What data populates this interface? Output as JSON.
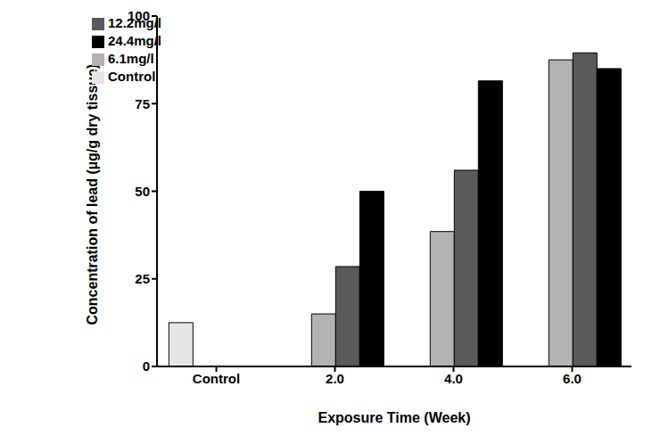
{
  "chart_data": {
    "type": "bar",
    "x_label": "Exposure Time (Week)",
    "y_label": "Concentration of lead (µg/g dry tissue)",
    "categories": [
      "Control",
      "2.0",
      "4.0",
      "6.0"
    ],
    "series": [
      {
        "name": "Control",
        "color": "#e6e6e6",
        "values": [
          12.5,
          null,
          null,
          null
        ]
      },
      {
        "name": "6.1mg/l",
        "color": "#b3b3b3",
        "values": [
          null,
          15,
          38.5,
          87.5
        ]
      },
      {
        "name": "12.2mg/l",
        "color": "#5a5a5a",
        "values": [
          null,
          28.5,
          56,
          89.5
        ]
      },
      {
        "name": "24.4mg/l",
        "color": "#000000",
        "values": [
          null,
          50,
          81.5,
          85
        ]
      }
    ],
    "ylim": [
      0,
      100
    ],
    "yticks": [
      0,
      25,
      50,
      75,
      100
    ],
    "grid": false,
    "legend": "upper left"
  }
}
